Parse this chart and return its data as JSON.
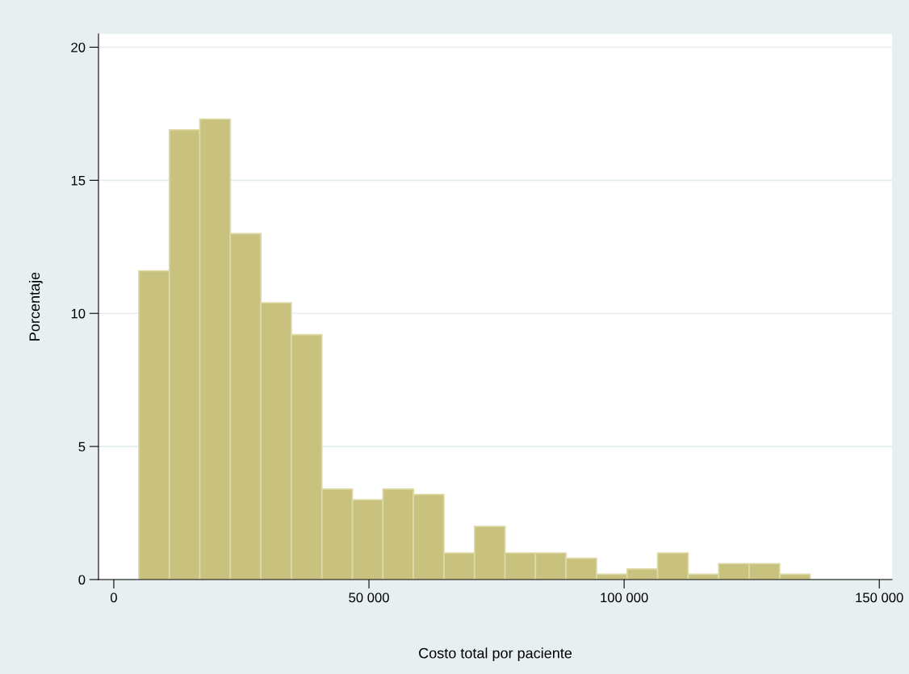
{
  "chart_data": {
    "type": "histogram",
    "xlabel": "Costo total por paciente",
    "ylabel": "Porcentaje",
    "bins": [
      4900,
      10880,
      16860,
      22840,
      28820,
      34800,
      40780,
      46760,
      52740,
      58720,
      64700,
      70680,
      76660,
      82640,
      88620,
      94600,
      100580,
      106560,
      112540,
      118520,
      124500,
      130480,
      136460
    ],
    "values": [
      11.6,
      16.9,
      17.3,
      13.0,
      10.4,
      9.2,
      3.4,
      3.0,
      3.4,
      3.2,
      1.0,
      2.0,
      1.0,
      1.0,
      0.8,
      0.2,
      0.4,
      1.0,
      0.2,
      0.6,
      0.6,
      0.2
    ],
    "color": "#c9c27f",
    "xlim": [
      -3000,
      152500
    ],
    "ylim": [
      0,
      20.5
    ],
    "xticks": [
      0,
      {
        "value": 50000,
        "label": "50 000"
      },
      {
        "value": 100000,
        "label": "100 000"
      },
      {
        "value": 150000,
        "label": "150 000"
      }
    ],
    "yticks": [
      0,
      5,
      10,
      15,
      20
    ],
    "grid": "y"
  }
}
